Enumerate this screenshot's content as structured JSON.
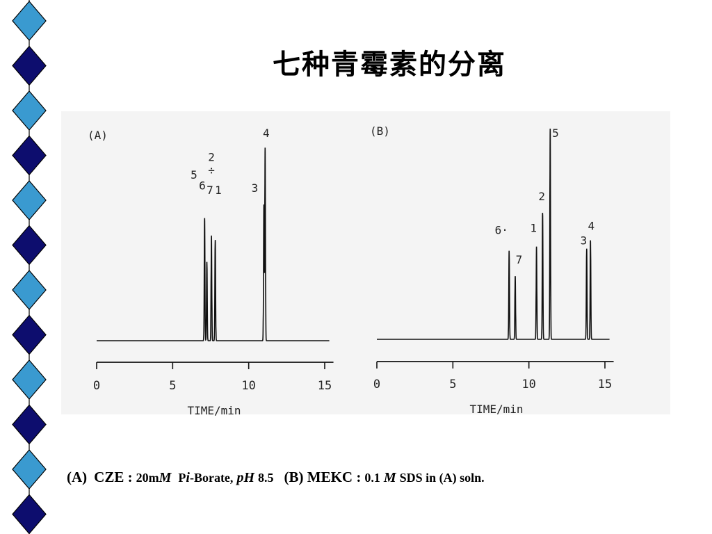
{
  "title": "七种青霉素的分离",
  "decoration": {
    "colors": [
      "#3a9ad0",
      "#0d0d6e"
    ],
    "shape": "diamond-chain"
  },
  "chart_data": [
    {
      "type": "line",
      "panel_label": "(A)",
      "xlabel": "TIME/min",
      "xlim": [
        0,
        15
      ],
      "xticks": [
        0,
        5,
        10,
        15
      ],
      "peaks": [
        {
          "time": 7.1,
          "height": 0.56
        },
        {
          "time": 7.25,
          "height": 0.36
        },
        {
          "time": 7.55,
          "height": 0.48
        },
        {
          "time": 7.8,
          "height": 0.46
        },
        {
          "time": 11.0,
          "height": 0.62
        },
        {
          "time": 11.08,
          "height": 0.88
        }
      ],
      "peak_labels": [
        {
          "text": "5",
          "time": 6.4,
          "level": 0.74
        },
        {
          "text": "6",
          "time": 6.95,
          "level": 0.69
        },
        {
          "text": "2",
          "time": 7.55,
          "level": 0.82
        },
        {
          "text": "÷",
          "time": 7.55,
          "level": 0.76
        },
        {
          "text": "7",
          "time": 7.45,
          "level": 0.67
        },
        {
          "text": "1",
          "time": 8.0,
          "level": 0.67
        },
        {
          "text": "3",
          "time": 10.4,
          "level": 0.68
        },
        {
          "text": "4",
          "time": 11.15,
          "level": 0.93
        }
      ]
    },
    {
      "type": "line",
      "panel_label": "(B)",
      "xlabel": "TIME/min",
      "xlim": [
        0,
        15
      ],
      "xticks": [
        0,
        5,
        10,
        15
      ],
      "peaks": [
        {
          "time": 8.7,
          "height": 0.42
        },
        {
          "time": 9.1,
          "height": 0.3
        },
        {
          "time": 10.5,
          "height": 0.44
        },
        {
          "time": 10.9,
          "height": 0.6
        },
        {
          "time": 11.4,
          "height": 1.0
        },
        {
          "time": 13.8,
          "height": 0.43
        },
        {
          "time": 14.05,
          "height": 0.47
        }
      ],
      "peak_labels": [
        {
          "text": "6·",
          "time": 8.2,
          "level": 0.5
        },
        {
          "text": "7",
          "time": 9.35,
          "level": 0.36
        },
        {
          "text": "1",
          "time": 10.3,
          "level": 0.51
        },
        {
          "text": "2",
          "time": 10.85,
          "level": 0.66
        },
        {
          "text": "5",
          "time": 11.75,
          "level": 0.96
        },
        {
          "text": "3",
          "time": 13.6,
          "level": 0.45
        },
        {
          "text": "4",
          "time": 14.1,
          "level": 0.52
        }
      ]
    }
  ],
  "caption": {
    "a_label": "(A)",
    "a_mode": "CZE :",
    "a_conc": "20m",
    "a_unit": "M",
    "a_p": "P",
    "a_i": "i",
    "a_buffer": "-Borate,",
    "a_ph": "pH",
    "a_ph_value": "8.5",
    "b_label": "(B) MEKC :",
    "b_conc": "0.1",
    "b_unit": "M",
    "b_rest": "SDS in (A) soln."
  }
}
